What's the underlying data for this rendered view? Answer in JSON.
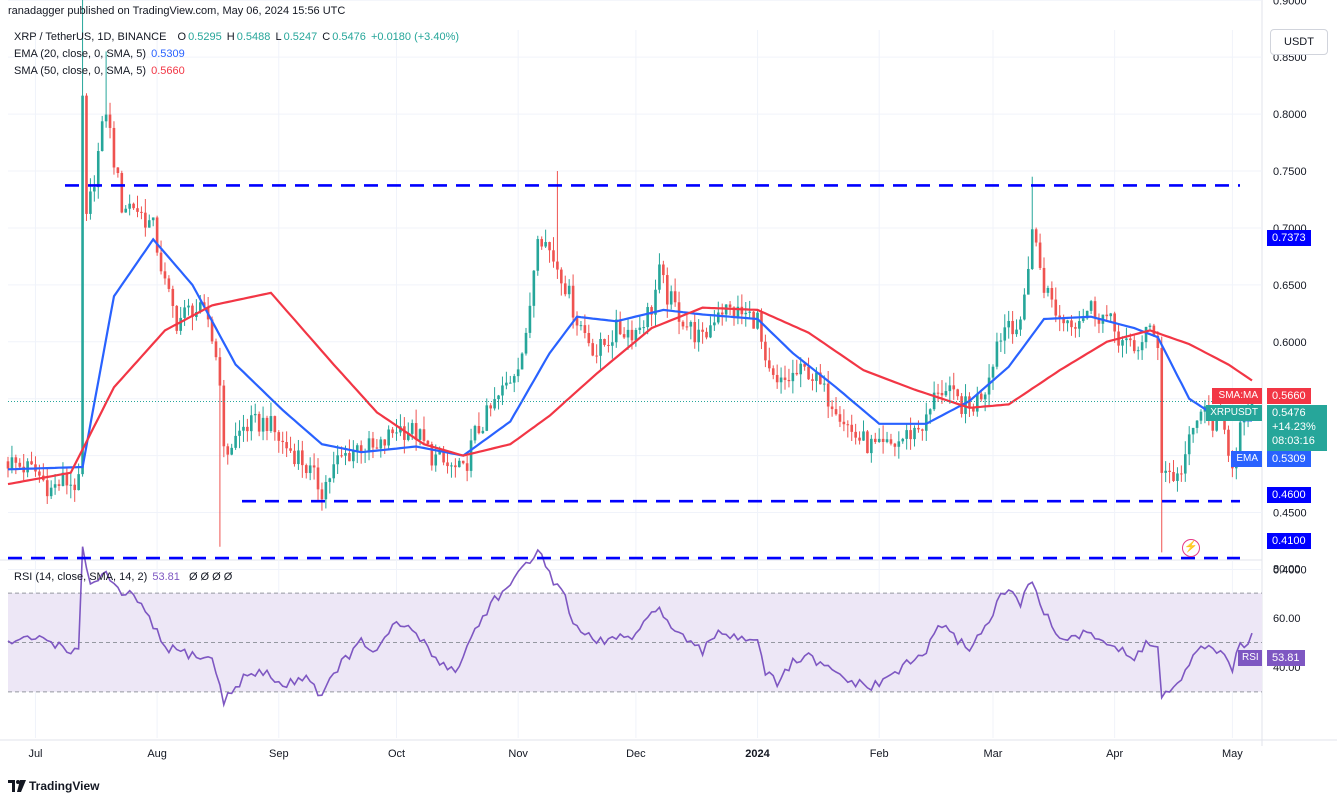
{
  "header": {
    "publisher_line": "ranadagger published on TradingView.com, May 06, 2024 15:56 UTC"
  },
  "legend": {
    "symbol": "XRP / TetherUS, 1D, BINANCE",
    "o_label": "O",
    "o": "0.5295",
    "h_label": "H",
    "h": "0.5488",
    "l_label": "L",
    "l": "0.5247",
    "c_label": "C",
    "c": "0.5476",
    "change": "+0.0180 (+3.40%)",
    "ema_label": "EMA (20, close, 0, SMA, 5)",
    "ema_value": "0.5309",
    "sma_label": "SMA (50, close, 0, SMA, 5)",
    "sma_value": "0.5660",
    "rsi_label": "RSI (14, close, SMA, 14, 2)",
    "rsi_value": "53.81",
    "rsi_tail": "Ø Ø Ø Ø"
  },
  "currency_button": "USDT",
  "price_tags": {
    "resistance": "0.7373",
    "support1": "0.4600",
    "support2": "0.4100",
    "sma_name": "SMA:MA",
    "sma_value": "0.5660",
    "symbol_name": "XRPUSDT",
    "last_price": "0.5476",
    "change_pct": "+14.23%",
    "countdown": "08:03:16",
    "ema_name": "EMA",
    "ema_value": "0.5309",
    "rsi_name": "RSI",
    "rsi_value": "53.81"
  },
  "footer": {
    "brand": "TradingView"
  },
  "colors": {
    "up": "#26a69a",
    "down": "#ef5350",
    "ema": "#2962ff",
    "sma": "#f23645",
    "level": "#0000ff",
    "rsi": "#7e57c2",
    "rsi_band": "#ede7f6",
    "grid": "#f0f3fa"
  },
  "chart_data": [
    {
      "type": "candlestick",
      "title": "XRP / TetherUS, 1D, BINANCE",
      "ylim": [
        0.4,
        0.93
      ],
      "y_ticks": [
        "0.4000",
        "0.4500",
        "0.5000",
        "0.5500",
        "0.6000",
        "0.6500",
        "0.7000",
        "0.7500",
        "0.8000",
        "0.8500",
        "0.9000"
      ],
      "x_ticks": [
        "Jul",
        "Aug",
        "Sep",
        "Oct",
        "Nov",
        "Dec",
        "2024",
        "Feb",
        "Mar",
        "Apr",
        "May"
      ],
      "x_range": [
        "2023-06-24",
        "2024-05-06"
      ],
      "horizontal_levels": [
        0.7373,
        0.46,
        0.41
      ],
      "keypoints_close": [
        [
          "2023-06-24",
          0.495
        ],
        [
          "2023-07-01",
          0.486
        ],
        [
          "2023-07-05",
          0.47
        ],
        [
          "2023-07-08",
          0.478
        ],
        [
          "2023-07-12",
          0.474
        ],
        [
          "2023-07-13",
          0.812
        ],
        [
          "2023-07-14",
          0.705
        ],
        [
          "2023-07-19",
          0.805
        ],
        [
          "2023-07-21",
          0.76
        ],
        [
          "2023-07-23",
          0.72
        ],
        [
          "2023-07-26",
          0.72
        ],
        [
          "2023-07-31",
          0.7
        ],
        [
          "2023-08-03",
          0.65
        ],
        [
          "2023-08-06",
          0.618
        ],
        [
          "2023-08-10",
          0.63
        ],
        [
          "2023-08-14",
          0.62
        ],
        [
          "2023-08-17",
          0.57
        ],
        [
          "2023-08-18",
          0.5
        ],
        [
          "2023-08-23",
          0.525
        ],
        [
          "2023-08-29",
          0.53
        ],
        [
          "2023-09-02",
          0.51
        ],
        [
          "2023-09-06",
          0.5
        ],
        [
          "2023-09-12",
          0.47
        ],
        [
          "2023-09-16",
          0.495
        ],
        [
          "2023-09-22",
          0.51
        ],
        [
          "2023-09-26",
          0.503
        ],
        [
          "2023-10-01",
          0.525
        ],
        [
          "2023-10-06",
          0.52
        ],
        [
          "2023-10-10",
          0.5
        ],
        [
          "2023-10-14",
          0.49
        ],
        [
          "2023-10-18",
          0.485
        ],
        [
          "2023-10-21",
          0.518
        ],
        [
          "2023-10-26",
          0.545
        ],
        [
          "2023-10-30",
          0.568
        ],
        [
          "2023-11-03",
          0.6
        ],
        [
          "2023-11-06",
          0.7
        ],
        [
          "2023-11-09",
          0.68
        ],
        [
          "2023-11-12",
          0.66
        ],
        [
          "2023-11-16",
          0.62
        ],
        [
          "2023-11-21",
          0.59
        ],
        [
          "2023-11-26",
          0.61
        ],
        [
          "2023-12-01",
          0.61
        ],
        [
          "2023-12-05",
          0.63
        ],
        [
          "2023-12-07",
          0.66
        ],
        [
          "2023-12-09",
          0.64
        ],
        [
          "2023-12-14",
          0.615
        ],
        [
          "2023-12-18",
          0.6
        ],
        [
          "2023-12-22",
          0.63
        ],
        [
          "2023-12-27",
          0.625
        ],
        [
          "2024-01-01",
          0.62
        ],
        [
          "2024-01-03",
          0.575
        ],
        [
          "2024-01-06",
          0.56
        ],
        [
          "2024-01-10",
          0.57
        ],
        [
          "2024-01-14",
          0.575
        ],
        [
          "2024-01-18",
          0.555
        ],
        [
          "2024-01-21",
          0.545
        ],
        [
          "2024-01-25",
          0.52
        ],
        [
          "2024-01-29",
          0.51
        ],
        [
          "2024-02-01",
          0.505
        ],
        [
          "2024-02-05",
          0.51
        ],
        [
          "2024-02-09",
          0.52
        ],
        [
          "2024-02-13",
          0.53
        ],
        [
          "2024-02-16",
          0.56
        ],
        [
          "2024-02-20",
          0.55
        ],
        [
          "2024-02-24",
          0.54
        ],
        [
          "2024-02-28",
          0.56
        ],
        [
          "2024-03-02",
          0.6
        ],
        [
          "2024-03-05",
          0.62
        ],
        [
          "2024-03-08",
          0.61
        ],
        [
          "2024-03-11",
          0.7
        ],
        [
          "2024-03-14",
          0.65
        ],
        [
          "2024-03-18",
          0.62
        ],
        [
          "2024-03-22",
          0.62
        ],
        [
          "2024-03-26",
          0.63
        ],
        [
          "2024-03-30",
          0.62
        ],
        [
          "2024-04-03",
          0.6
        ],
        [
          "2024-04-06",
          0.59
        ],
        [
          "2024-04-09",
          0.61
        ],
        [
          "2024-04-12",
          0.6
        ],
        [
          "2024-04-13",
          0.49
        ],
        [
          "2024-04-17",
          0.48
        ],
        [
          "2024-04-20",
          0.51
        ],
        [
          "2024-04-23",
          0.54
        ],
        [
          "2024-04-26",
          0.53
        ],
        [
          "2024-04-29",
          0.52
        ],
        [
          "2024-05-01",
          0.495
        ],
        [
          "2024-05-03",
          0.525
        ],
        [
          "2024-05-05",
          0.53
        ],
        [
          "2024-05-06",
          0.5476
        ]
      ],
      "series": [
        {
          "name": "EMA (20, close, 0, SMA, 5)",
          "last": 0.5309,
          "points": [
            [
              "2023-06-24",
              0.488
            ],
            [
              "2023-07-13",
              0.49
            ],
            [
              "2023-07-21",
              0.64
            ],
            [
              "2023-07-31",
              0.69
            ],
            [
              "2023-08-10",
              0.65
            ],
            [
              "2023-08-21",
              0.58
            ],
            [
              "2023-09-02",
              0.54
            ],
            [
              "2023-09-12",
              0.51
            ],
            [
              "2023-09-22",
              0.503
            ],
            [
              "2023-10-06",
              0.508
            ],
            [
              "2023-10-18",
              0.5
            ],
            [
              "2023-10-30",
              0.53
            ],
            [
              "2023-11-09",
              0.59
            ],
            [
              "2023-11-16",
              0.622
            ],
            [
              "2023-11-26",
              0.618
            ],
            [
              "2023-12-08",
              0.628
            ],
            [
              "2023-12-18",
              0.624
            ],
            [
              "2024-01-01",
              0.62
            ],
            [
              "2024-01-10",
              0.59
            ],
            [
              "2024-01-21",
              0.56
            ],
            [
              "2024-02-01",
              0.528
            ],
            [
              "2024-02-13",
              0.528
            ],
            [
              "2024-02-24",
              0.548
            ],
            [
              "2024-03-05",
              0.578
            ],
            [
              "2024-03-14",
              0.62
            ],
            [
              "2024-03-26",
              0.622
            ],
            [
              "2024-04-06",
              0.612
            ],
            [
              "2024-04-12",
              0.604
            ],
            [
              "2024-04-20",
              0.55
            ],
            [
              "2024-04-28",
              0.532
            ],
            [
              "2024-05-06",
              0.5309
            ]
          ]
        },
        {
          "name": "SMA (50, close, 0, SMA, 5)",
          "last": 0.566,
          "points": [
            [
              "2023-06-24",
              0.475
            ],
            [
              "2023-07-10",
              0.485
            ],
            [
              "2023-07-21",
              0.56
            ],
            [
              "2023-08-03",
              0.61
            ],
            [
              "2023-08-15",
              0.632
            ],
            [
              "2023-08-30",
              0.643
            ],
            [
              "2023-09-15",
              0.58
            ],
            [
              "2023-09-26",
              0.538
            ],
            [
              "2023-10-08",
              0.51
            ],
            [
              "2023-10-18",
              0.5
            ],
            [
              "2023-10-30",
              0.51
            ],
            [
              "2023-11-09",
              0.535
            ],
            [
              "2023-11-21",
              0.572
            ],
            [
              "2023-12-05",
              0.612
            ],
            [
              "2023-12-18",
              0.63
            ],
            [
              "2024-01-01",
              0.628
            ],
            [
              "2024-01-14",
              0.608
            ],
            [
              "2024-01-28",
              0.575
            ],
            [
              "2024-02-10",
              0.558
            ],
            [
              "2024-02-24",
              0.542
            ],
            [
              "2024-03-05",
              0.545
            ],
            [
              "2024-03-18",
              0.575
            ],
            [
              "2024-03-30",
              0.6
            ],
            [
              "2024-04-10",
              0.61
            ],
            [
              "2024-04-20",
              0.598
            ],
            [
              "2024-04-30",
              0.58
            ],
            [
              "2024-05-06",
              0.566
            ]
          ]
        }
      ]
    },
    {
      "type": "line",
      "title": "RSI (14, close, SMA, 14, 2)",
      "ylim": [
        20,
        92
      ],
      "y_ticks": [
        "40.00",
        "60.00",
        "80.00"
      ],
      "bands": [
        30,
        50,
        70
      ],
      "series": [
        {
          "name": "RSI",
          "last": 53.81,
          "points": [
            [
              "2023-06-24",
              50
            ],
            [
              "2023-07-03",
              52
            ],
            [
              "2023-07-08",
              48
            ],
            [
              "2023-07-12",
              46
            ],
            [
              "2023-07-13",
              87
            ],
            [
              "2023-07-15",
              74
            ],
            [
              "2023-07-19",
              78
            ],
            [
              "2023-07-23",
              68
            ],
            [
              "2023-07-26",
              70
            ],
            [
              "2023-08-03",
              48
            ],
            [
              "2023-08-10",
              45
            ],
            [
              "2023-08-15",
              43
            ],
            [
              "2023-08-17",
              33
            ],
            [
              "2023-08-18",
              26
            ],
            [
              "2023-08-23",
              36
            ],
            [
              "2023-08-29",
              38
            ],
            [
              "2023-09-02",
              32
            ],
            [
              "2023-09-08",
              37
            ],
            [
              "2023-09-12",
              28
            ],
            [
              "2023-09-16",
              40
            ],
            [
              "2023-09-22",
              50
            ],
            [
              "2023-09-26",
              46
            ],
            [
              "2023-10-01",
              58
            ],
            [
              "2023-10-06",
              54
            ],
            [
              "2023-10-10",
              45
            ],
            [
              "2023-10-16",
              38
            ],
            [
              "2023-10-21",
              55
            ],
            [
              "2023-10-26",
              68
            ],
            [
              "2023-10-30",
              72
            ],
            [
              "2023-11-03",
              82
            ],
            [
              "2023-11-06",
              88
            ],
            [
              "2023-11-09",
              77
            ],
            [
              "2023-11-12",
              72
            ],
            [
              "2023-11-16",
              55
            ],
            [
              "2023-11-21",
              50
            ],
            [
              "2023-11-26",
              52
            ],
            [
              "2023-12-01",
              52
            ],
            [
              "2023-12-07",
              66
            ],
            [
              "2023-12-09",
              58
            ],
            [
              "2023-12-14",
              50
            ],
            [
              "2023-12-18",
              46
            ],
            [
              "2023-12-22",
              55
            ],
            [
              "2023-12-27",
              52
            ],
            [
              "2024-01-01",
              52
            ],
            [
              "2024-01-03",
              38
            ],
            [
              "2024-01-06",
              33
            ],
            [
              "2024-01-10",
              42
            ],
            [
              "2024-01-14",
              44
            ],
            [
              "2024-01-18",
              40
            ],
            [
              "2024-01-25",
              34
            ],
            [
              "2024-01-29",
              32
            ],
            [
              "2024-02-01",
              33
            ],
            [
              "2024-02-05",
              38
            ],
            [
              "2024-02-09",
              42
            ],
            [
              "2024-02-13",
              46
            ],
            [
              "2024-02-16",
              58
            ],
            [
              "2024-02-20",
              52
            ],
            [
              "2024-02-24",
              48
            ],
            [
              "2024-02-28",
              56
            ],
            [
              "2024-03-02",
              66
            ],
            [
              "2024-03-05",
              72
            ],
            [
              "2024-03-08",
              65
            ],
            [
              "2024-03-11",
              76
            ],
            [
              "2024-03-14",
              62
            ],
            [
              "2024-03-18",
              52
            ],
            [
              "2024-03-22",
              52
            ],
            [
              "2024-03-26",
              54
            ],
            [
              "2024-03-30",
              50
            ],
            [
              "2024-04-03",
              46
            ],
            [
              "2024-04-06",
              43
            ],
            [
              "2024-04-09",
              50
            ],
            [
              "2024-04-12",
              48
            ],
            [
              "2024-04-13",
              28
            ],
            [
              "2024-04-17",
              32
            ],
            [
              "2024-04-20",
              40
            ],
            [
              "2024-04-23",
              50
            ],
            [
              "2024-04-26",
              46
            ],
            [
              "2024-04-29",
              44
            ],
            [
              "2024-05-01",
              40
            ],
            [
              "2024-05-03",
              48
            ],
            [
              "2024-05-05",
              49
            ],
            [
              "2024-05-06",
              53.81
            ]
          ]
        }
      ]
    }
  ]
}
